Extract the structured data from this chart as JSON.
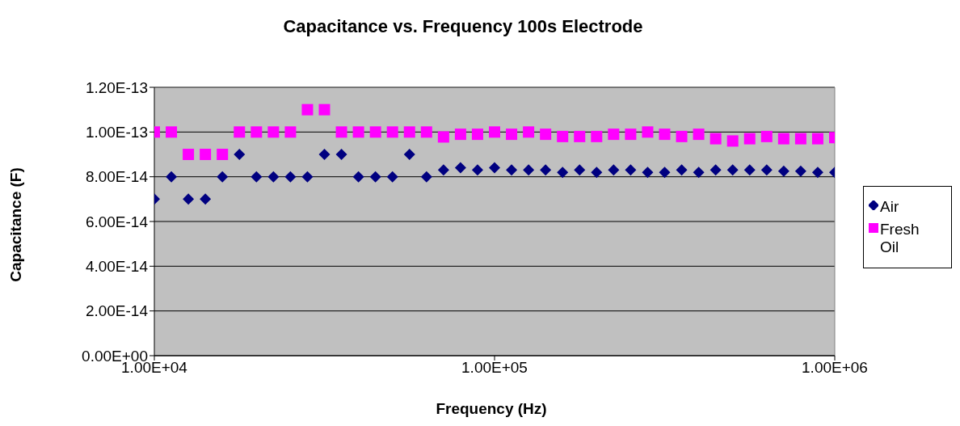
{
  "chart_data": {
    "type": "scatter",
    "title": "Capacitance vs. Frequency 100s Electrode",
    "xlabel": "Frequency (Hz)",
    "ylabel": "Capacitance (F)",
    "x": [
      10000,
      11220,
      12589,
      14125,
      15849,
      17783,
      19953,
      22387,
      25119,
      28184,
      31623,
      35481,
      39811,
      44668,
      50119,
      56234,
      63096,
      70795,
      79433,
      89125,
      100000,
      112202,
      125893,
      141254,
      158489,
      177828,
      199526,
      223872,
      251189,
      281838,
      316228,
      354813,
      398107,
      446684,
      501187,
      562341,
      630957,
      707946,
      794328,
      891251,
      1000000
    ],
    "series": [
      {
        "name": "Air",
        "color": "#000080",
        "marker": "diamond",
        "values": [
          7e-14,
          8e-14,
          7e-14,
          7e-14,
          8e-14,
          9e-14,
          8e-14,
          8e-14,
          8e-14,
          8e-14,
          9e-14,
          9e-14,
          8e-14,
          8e-14,
          8e-14,
          9e-14,
          8e-14,
          8.3e-14,
          8.4e-14,
          8.3e-14,
          8.4e-14,
          8.3e-14,
          8.3e-14,
          8.3e-14,
          8.2e-14,
          8.3e-14,
          8.2e-14,
          8.3e-14,
          8.3e-14,
          8.2e-14,
          8.2e-14,
          8.3e-14,
          8.2e-14,
          8.3e-14,
          8.3e-14,
          8.3e-14,
          8.3e-14,
          8.25e-14,
          8.25e-14,
          8.2e-14,
          8.2e-14
        ]
      },
      {
        "name": "Fresh Oil",
        "color": "#ff00ff",
        "marker": "square",
        "values": [
          1e-13,
          1e-13,
          9e-14,
          9e-14,
          9e-14,
          1e-13,
          1e-13,
          1e-13,
          1e-13,
          1.1e-13,
          1.1e-13,
          1e-13,
          1e-13,
          1e-13,
          1e-13,
          1e-13,
          1e-13,
          9.78e-14,
          9.9e-14,
          9.9e-14,
          1e-13,
          9.9e-14,
          1e-13,
          9.9e-14,
          9.8e-14,
          9.8e-14,
          9.8e-14,
          9.9e-14,
          9.9e-14,
          1e-13,
          9.9e-14,
          9.8e-14,
          9.9e-14,
          9.7e-14,
          9.6e-14,
          9.7e-14,
          9.8e-14,
          9.7e-14,
          9.7e-14,
          9.7e-14,
          9.75e-14
        ]
      }
    ],
    "log": "x",
    "xlim": [
      10000,
      1000000
    ],
    "xticks": [
      {
        "value": 10000,
        "label": "1.00E+04"
      },
      {
        "value": 100000,
        "label": "1.00E+05"
      },
      {
        "value": 1000000,
        "label": "1.00E+06"
      }
    ],
    "ylim": [
      0,
      1.2e-13
    ],
    "yticks": [
      {
        "value": 0,
        "label": "0.00E+00"
      },
      {
        "value": 2e-14,
        "label": "2.00E-14"
      },
      {
        "value": 4e-14,
        "label": "4.00E-14"
      },
      {
        "value": 6e-14,
        "label": "6.00E-14"
      },
      {
        "value": 8e-14,
        "label": "8.00E-14"
      },
      {
        "value": 1e-13,
        "label": "1.00E-13"
      },
      {
        "value": 1.2e-13,
        "label": "1.20E-13"
      }
    ],
    "grid": "y",
    "legend": "right"
  }
}
